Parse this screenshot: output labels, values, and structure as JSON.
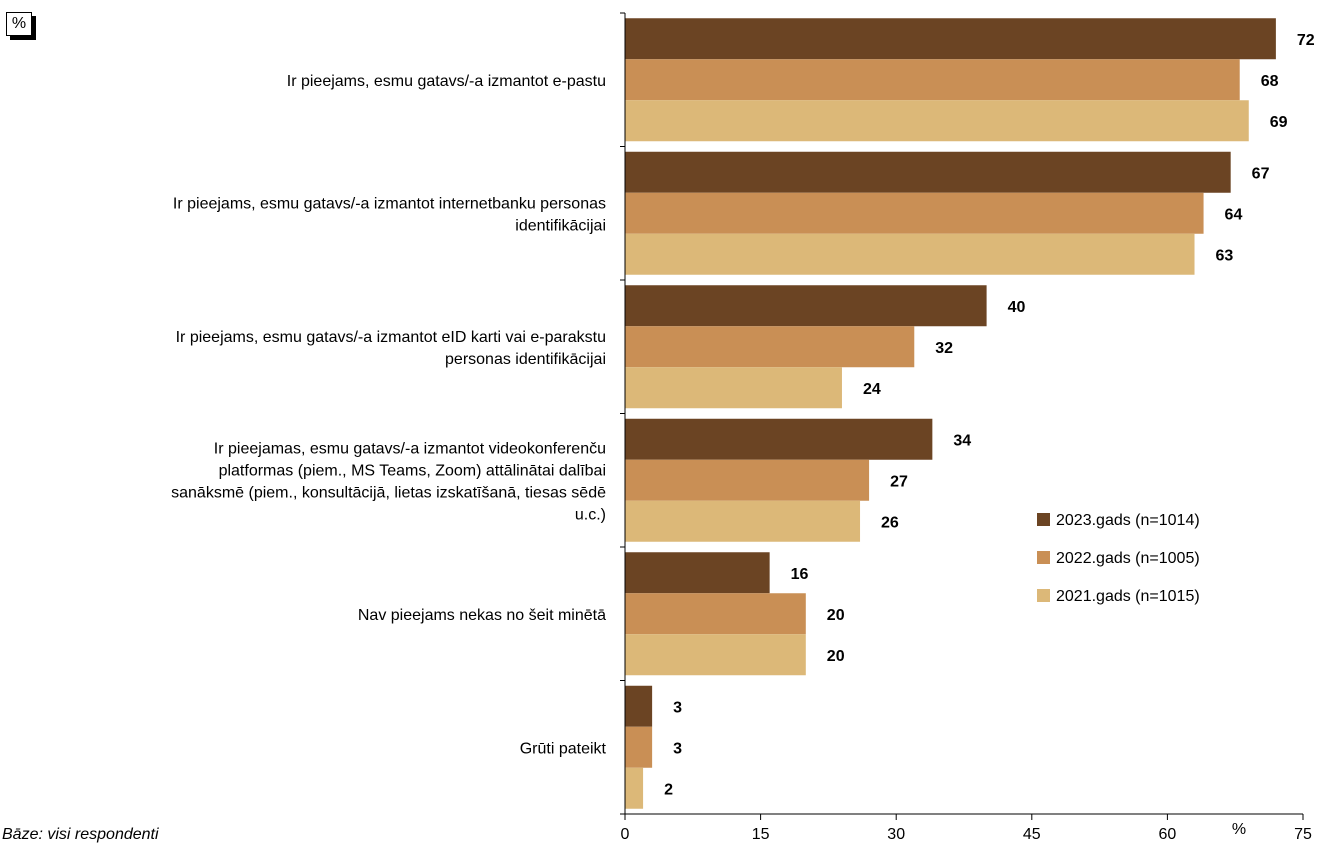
{
  "unit_badge": "%",
  "footnote": "Bāze: visi respondenti",
  "chart_data": {
    "type": "bar",
    "orientation": "horizontal",
    "categories": [
      [
        "Ir pieejams, esmu gatavs/-a izmantot e-pastu"
      ],
      [
        "Ir pieejams, esmu gatavs/-a izmantot internetbanku personas",
        "identifikācijai"
      ],
      [
        "Ir pieejams, esmu gatavs/-a izmantot eID karti vai e-parakstu",
        "personas identifikācijai"
      ],
      [
        "Ir pieejamas, esmu gatavs/-a izmantot videokonferenču",
        "platformas (piem., MS Teams, Zoom) attālinātai dalībai",
        "sanāksmē (piem., konsultācijā, lietas izskatīšanā, tiesas sēdē",
        "u.c.)"
      ],
      [
        "Nav pieejams nekas no šeit minētā"
      ],
      [
        "Grūti pateikt"
      ]
    ],
    "series": [
      {
        "name": "2023.gads (n=1014)",
        "color": "#6b4423",
        "values": [
          72,
          67,
          40,
          34,
          16,
          3
        ]
      },
      {
        "name": "2022.gads (n=1005)",
        "color": "#c98f55",
        "values": [
          68,
          64,
          32,
          27,
          20,
          3
        ]
      },
      {
        "name": "2021.gads (n=1015)",
        "color": "#dcb878",
        "values": [
          69,
          63,
          24,
          26,
          20,
          2
        ]
      }
    ],
    "xlim": [
      0,
      75
    ],
    "xticks": [
      0,
      15,
      30,
      45,
      60,
      75
    ],
    "xunit": "%",
    "legend_position": "right"
  }
}
